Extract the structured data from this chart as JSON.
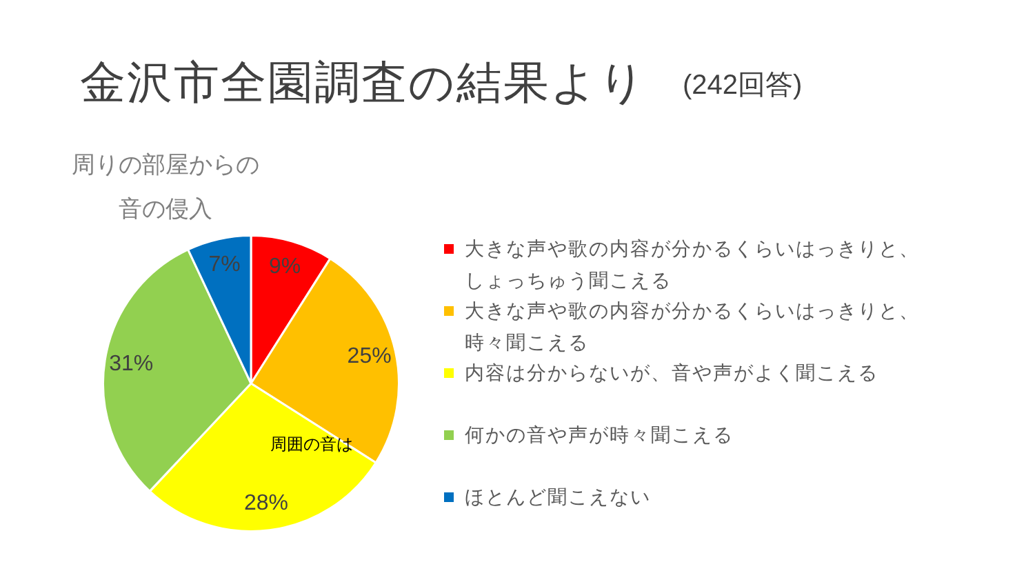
{
  "chart_data": {
    "type": "pie",
    "title": "金沢市全園調査の結果より",
    "subtitle": "周りの部屋からの音の侵入",
    "annotations": [
      "(242回答)",
      "周囲の音は"
    ],
    "categories": [
      "大きな声や歌の内容が分かるくらいはっきりと、しょっちゅう聞こえる",
      "大きな声や歌の内容が分かるくらいはっきりと、時々聞こえる",
      "内容は分からないが、音や声がよく聞こえる",
      "何かの音や声が時々聞こえる",
      "ほとんど聞こえない"
    ],
    "values": [
      9,
      25,
      28,
      31,
      7
    ],
    "colors": [
      "#ff0000",
      "#ffc000",
      "#ffff00",
      "#92d050",
      "#0070c0"
    ],
    "value_labels": [
      "9%",
      "25%",
      "28%",
      "31%",
      "7%"
    ],
    "legend": "right"
  }
}
